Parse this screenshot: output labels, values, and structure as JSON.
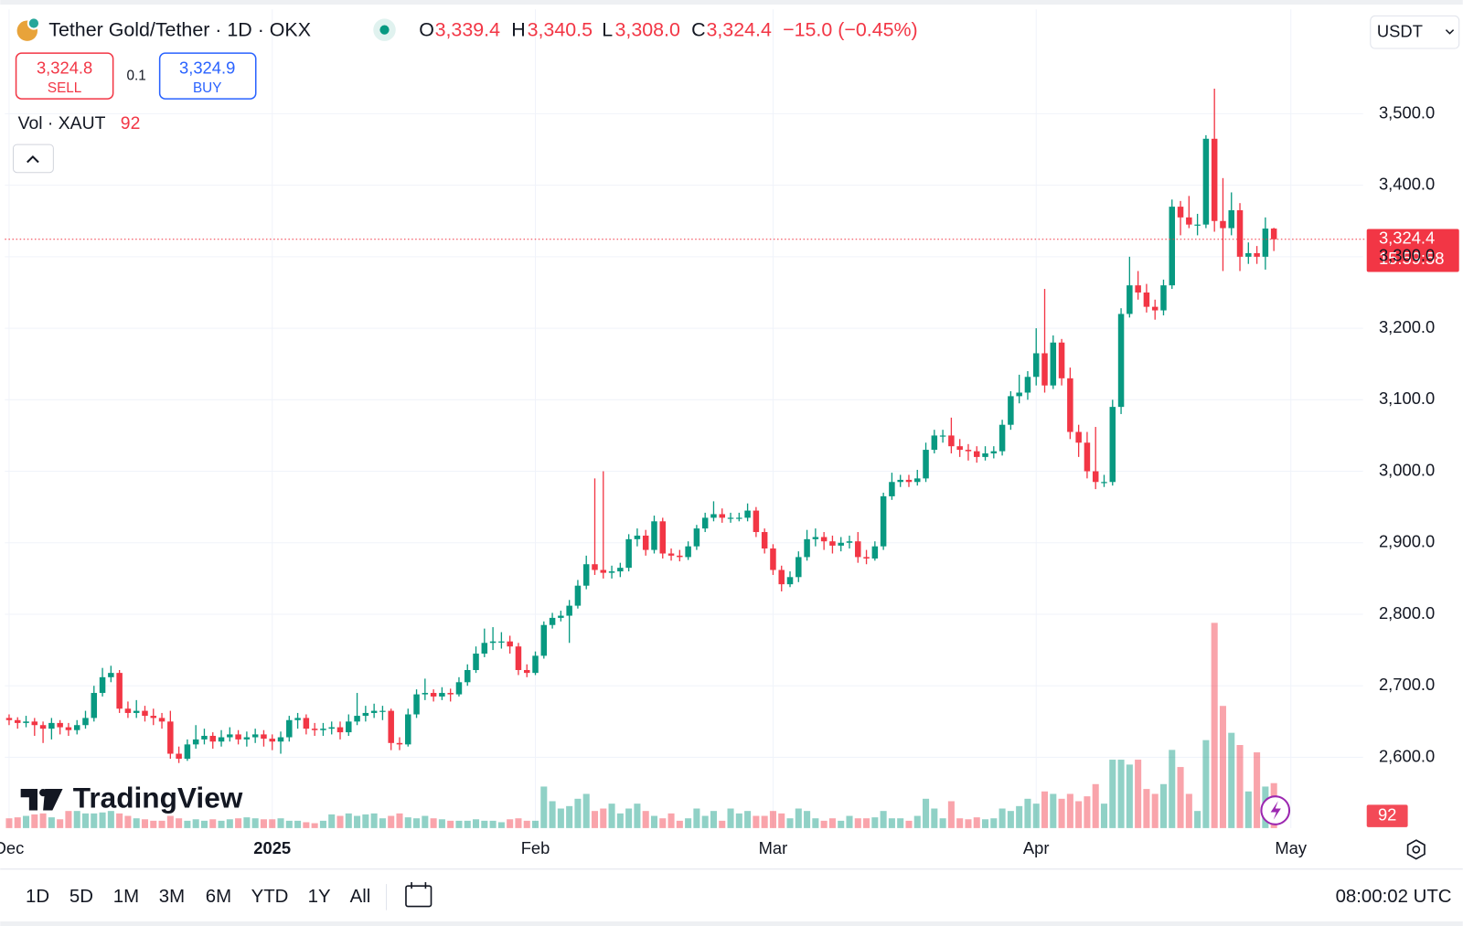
{
  "header": {
    "title": "Tether Gold/Tether · 1D · OKX",
    "ohlc_letters": [
      "O",
      "H",
      "L",
      "C"
    ],
    "sell_price": "3,324.8",
    "sell": "SELL",
    "spread": "0.1",
    "buy_price": "3,324.9",
    "buy": "BUY",
    "volume_title": "Vol · XAUT",
    "currency": "USDT"
  },
  "logo": "TradingView",
  "chart_data": {
    "type": "candlestick",
    "open": [
      2655,
      2652,
      2648,
      2650,
      2645,
      2640,
      2648,
      2642,
      2638,
      2645,
      2655,
      2690,
      2712,
      2718,
      2668,
      2662,
      2665,
      2658,
      2655,
      2650,
      2605,
      2598,
      2618,
      2625,
      2630,
      2622,
      2628,
      2632,
      2625,
      2628,
      2632,
      2626,
      2622,
      2628,
      2652,
      2655,
      2640,
      2638,
      2640,
      2642,
      2635,
      2650,
      2658,
      2662,
      2665,
      2665,
      2620,
      2618,
      2660,
      2688,
      2690,
      2685,
      2690,
      2688,
      2705,
      2722,
      2745,
      2760,
      2762,
      2762,
      2755,
      2722,
      2718,
      2742,
      2785,
      2795,
      2798,
      2812,
      2840,
      2870,
      2862,
      2858,
      2860,
      2865,
      2905,
      2910,
      2890,
      2930,
      2885,
      2882,
      2880,
      2895,
      2920,
      2935,
      2940,
      2935,
      2935,
      2935,
      2945,
      2915,
      2892,
      2862,
      2842,
      2852,
      2880,
      2905,
      2908,
      2902,
      2896,
      2900,
      2902,
      2880,
      2878,
      2895,
      2965,
      2985,
      2988,
      2985,
      2990,
      3030,
      3050,
      3050,
      3035,
      3030,
      3028,
      3020,
      3025,
      3028,
      3065,
      3105,
      3110,
      3132,
      3165,
      3120,
      3180,
      3130,
      3055,
      3040,
      3000,
      2985,
      2985,
      3090,
      3220,
      3260,
      3250,
      3230,
      3225,
      3260,
      3370,
      3355,
      3345,
      3345,
      3465,
      3350,
      3340,
      3365,
      3300,
      3305,
      3300,
      3339.4
    ],
    "high": [
      2660,
      2656,
      2658,
      2655,
      2650,
      2655,
      2652,
      2648,
      2652,
      2665,
      2700,
      2725,
      2728,
      2722,
      2678,
      2680,
      2672,
      2668,
      2662,
      2665,
      2615,
      2625,
      2645,
      2640,
      2635,
      2638,
      2642,
      2638,
      2636,
      2640,
      2638,
      2632,
      2636,
      2658,
      2662,
      2660,
      2648,
      2648,
      2650,
      2650,
      2660,
      2690,
      2672,
      2675,
      2672,
      2668,
      2628,
      2668,
      2695,
      2710,
      2695,
      2698,
      2696,
      2712,
      2730,
      2755,
      2780,
      2782,
      2775,
      2770,
      2760,
      2730,
      2748,
      2790,
      2802,
      2805,
      2820,
      2848,
      2882,
      2990,
      3000,
      2868,
      2872,
      2912,
      2920,
      2918,
      2938,
      2935,
      2892,
      2890,
      2902,
      2925,
      2942,
      2958,
      2948,
      2942,
      2942,
      2955,
      2950,
      2920,
      2898,
      2868,
      2860,
      2888,
      2918,
      2920,
      2915,
      2910,
      2908,
      2910,
      2915,
      2890,
      2902,
      2970,
      2998,
      2995,
      2995,
      3002,
      3040,
      3058,
      3058,
      3075,
      3045,
      3038,
      3035,
      3035,
      3035,
      3072,
      3112,
      3135,
      3140,
      3200,
      3255,
      3190,
      3185,
      3145,
      3065,
      3055,
      3062,
      2995,
      3100,
      3228,
      3300,
      3280,
      3262,
      3240,
      3268,
      3380,
      3378,
      3385,
      3360,
      3470,
      3535,
      3410,
      3390,
      3375,
      3320,
      3315,
      3355,
      3340.5
    ],
    "low": [
      2645,
      2640,
      2642,
      2630,
      2620,
      2625,
      2632,
      2630,
      2632,
      2640,
      2650,
      2685,
      2705,
      2662,
      2655,
      2655,
      2650,
      2645,
      2640,
      2598,
      2592,
      2595,
      2612,
      2618,
      2612,
      2615,
      2622,
      2618,
      2615,
      2620,
      2615,
      2610,
      2605,
      2622,
      2640,
      2632,
      2630,
      2630,
      2632,
      2625,
      2630,
      2645,
      2650,
      2655,
      2652,
      2610,
      2610,
      2615,
      2655,
      2680,
      2678,
      2680,
      2678,
      2685,
      2700,
      2718,
      2740,
      2750,
      2752,
      2745,
      2715,
      2712,
      2715,
      2738,
      2780,
      2790,
      2760,
      2808,
      2835,
      2855,
      2850,
      2850,
      2852,
      2860,
      2895,
      2882,
      2885,
      2878,
      2875,
      2874,
      2876,
      2890,
      2915,
      2930,
      2928,
      2928,
      2930,
      2930,
      2908,
      2885,
      2855,
      2832,
      2838,
      2845,
      2875,
      2895,
      2890,
      2885,
      2888,
      2892,
      2872,
      2870,
      2875,
      2890,
      2960,
      2978,
      2978,
      2980,
      2985,
      3025,
      3040,
      3025,
      3020,
      3015,
      3012,
      3015,
      3018,
      3022,
      3058,
      3095,
      3100,
      3120,
      3110,
      3115,
      3120,
      3045,
      3020,
      2990,
      2975,
      2978,
      2980,
      3080,
      3215,
      3240,
      3222,
      3212,
      3218,
      3255,
      3330,
      3340,
      3330,
      3340,
      3335,
      3280,
      3330,
      3280,
      3290,
      3290,
      3282,
      3308
    ],
    "close": [
      2652,
      2648,
      2650,
      2645,
      2640,
      2648,
      2642,
      2638,
      2645,
      2655,
      2690,
      2712,
      2718,
      2668,
      2662,
      2665,
      2658,
      2655,
      2650,
      2605,
      2598,
      2618,
      2625,
      2630,
      2622,
      2628,
      2632,
      2625,
      2628,
      2632,
      2626,
      2622,
      2628,
      2652,
      2655,
      2640,
      2638,
      2640,
      2642,
      2635,
      2650,
      2658,
      2662,
      2665,
      2665,
      2620,
      2618,
      2660,
      2688,
      2690,
      2685,
      2690,
      2688,
      2705,
      2722,
      2745,
      2760,
      2762,
      2762,
      2755,
      2722,
      2718,
      2742,
      2785,
      2795,
      2798,
      2812,
      2840,
      2870,
      2862,
      2858,
      2860,
      2865,
      2905,
      2910,
      2890,
      2930,
      2885,
      2882,
      2880,
      2895,
      2920,
      2935,
      2940,
      2935,
      2935,
      2935,
      2945,
      2915,
      2892,
      2862,
      2842,
      2852,
      2880,
      2905,
      2908,
      2902,
      2896,
      2900,
      2902,
      2880,
      2878,
      2895,
      2965,
      2985,
      2988,
      2985,
      2990,
      3030,
      3050,
      3050,
      3035,
      3030,
      3028,
      3020,
      3025,
      3028,
      3065,
      3105,
      3110,
      3132,
      3165,
      3120,
      3180,
      3130,
      3055,
      3040,
      3000,
      2985,
      2985,
      3090,
      3220,
      3260,
      3250,
      3230,
      3225,
      3260,
      3370,
      3355,
      3345,
      3345,
      3465,
      3350,
      3340,
      3365,
      3300,
      3305,
      3300,
      3339.4,
      3324.4
    ],
    "volume": [
      20,
      22,
      25,
      28,
      30,
      22,
      18,
      35,
      35,
      30,
      30,
      32,
      35,
      30,
      25,
      20,
      18,
      15,
      15,
      25,
      20,
      15,
      18,
      15,
      18,
      15,
      18,
      20,
      22,
      20,
      18,
      18,
      20,
      15,
      15,
      12,
      10,
      15,
      28,
      25,
      30,
      25,
      28,
      30,
      20,
      25,
      30,
      22,
      20,
      25,
      20,
      18,
      15,
      15,
      15,
      18,
      15,
      15,
      12,
      18,
      20,
      15,
      15,
      85,
      55,
      40,
      45,
      60,
      70,
      35,
      40,
      50,
      30,
      40,
      50,
      35,
      25,
      20,
      30,
      15,
      20,
      40,
      25,
      35,
      15,
      40,
      30,
      35,
      25,
      25,
      35,
      30,
      20,
      40,
      35,
      20,
      15,
      20,
      15,
      25,
      20,
      20,
      22,
      35,
      20,
      20,
      15,
      25,
      60,
      40,
      20,
      55,
      20,
      18,
      22,
      18,
      20,
      40,
      35,
      45,
      60,
      50,
      75,
      70,
      60,
      70,
      55,
      65,
      90,
      50,
      140,
      140,
      130,
      140,
      80,
      70,
      90,
      160,
      125,
      70,
      35,
      180,
      420,
      250,
      195,
      170,
      75,
      155,
      85,
      92
    ],
    "last_labels": {
      "open": "3,339.4",
      "high": "3,340.5",
      "low": "3,308.0",
      "close": "3,324.4"
    },
    "change_label": "−15.0 (−0.45%)",
    "countdown": "15:59:58",
    "up_color": "#089981",
    "down_color": "#f23645",
    "xlim": [
      -0.5,
      159.5
    ],
    "xticks": [
      {
        "value": 0,
        "label": "Dec"
      },
      {
        "value": 31,
        "label": "2025"
      },
      {
        "value": 62,
        "label": "Feb"
      },
      {
        "value": 90,
        "label": "Mar"
      },
      {
        "value": 121,
        "label": "Apr"
      },
      {
        "value": 151,
        "label": "May"
      }
    ],
    "ylim": [
      2501,
      3646
    ],
    "yticks": [
      {
        "value": 2600,
        "label": "2,600.0"
      },
      {
        "value": 2700,
        "label": "2,700.0"
      },
      {
        "value": 2800,
        "label": "2,800.0"
      },
      {
        "value": 2900,
        "label": "2,900.0"
      },
      {
        "value": 3000,
        "label": "3,000.0"
      },
      {
        "value": 3100,
        "label": "3,100.0"
      },
      {
        "value": 3200,
        "label": "3,200.0"
      },
      {
        "value": 3300,
        "label": "3,300.0"
      },
      {
        "value": 3400,
        "label": "3,400.0"
      },
      {
        "value": 3500,
        "label": "3,500.0"
      }
    ],
    "vol_ylim": [
      0,
      500
    ],
    "grid": true
  },
  "footer": {
    "ranges": [
      "1D",
      "5D",
      "1M",
      "3M",
      "6M",
      "YTD",
      "1Y",
      "All"
    ],
    "clock": "08:00:02 UTC"
  }
}
